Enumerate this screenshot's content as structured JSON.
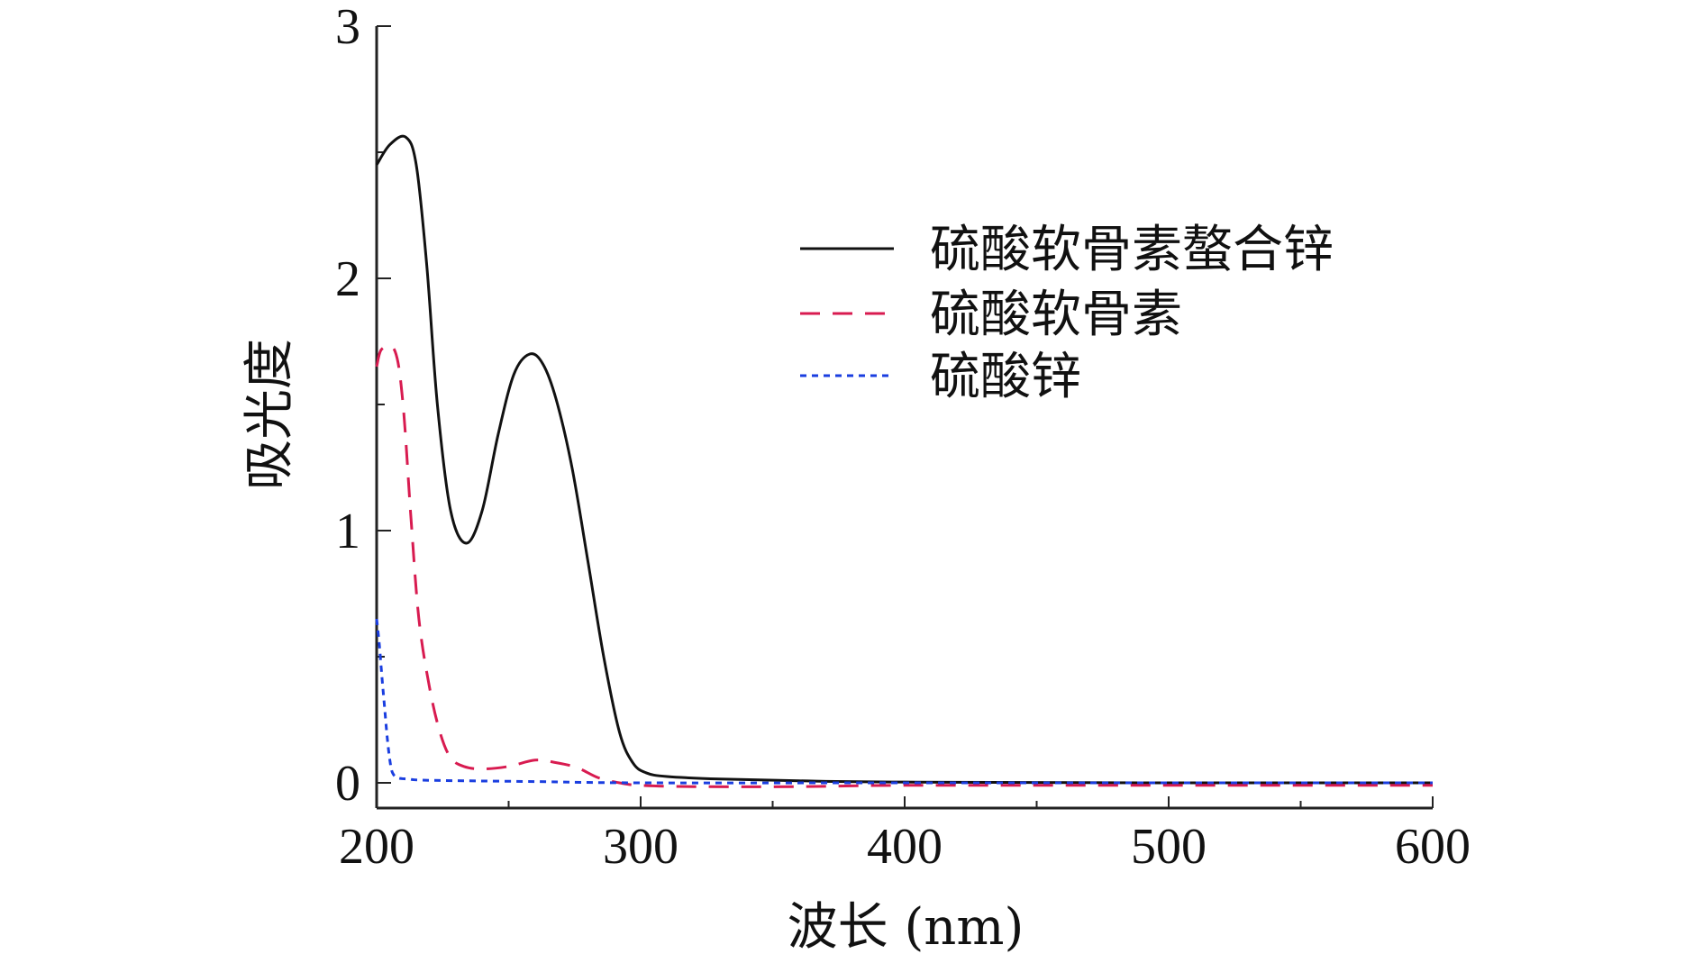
{
  "chart_data": {
    "type": "line",
    "title": "",
    "xlabel": "波长 (nm)",
    "ylabel": "吸光度",
    "xlim": [
      200,
      600
    ],
    "ylim": [
      -0.1,
      3
    ],
    "xticks": [
      200,
      300,
      400,
      500,
      600
    ],
    "xtick_labels": [
      "200",
      "300",
      "400",
      "500",
      "600"
    ],
    "xminor": [
      250,
      350,
      450,
      550
    ],
    "yticks": [
      0,
      1,
      2,
      3
    ],
    "ytick_labels": [
      "0",
      "1",
      "2",
      "3"
    ],
    "yminor": [
      0.5,
      1.5,
      2.5
    ],
    "grid": false,
    "legend_position": "top-right",
    "series": [
      {
        "name": "硫酸软骨素螯合锌",
        "color": "#111111",
        "style": "solid",
        "x": [
          200,
          205,
          211,
          215,
          219,
          223,
          228,
          234,
          240,
          246,
          252,
          258,
          263,
          268,
          274,
          280,
          286,
          292,
          297,
          302,
          310,
          330,
          360,
          400,
          500,
          600
        ],
        "y": [
          2.45,
          2.53,
          2.56,
          2.45,
          2.05,
          1.5,
          1.08,
          0.95,
          1.08,
          1.38,
          1.62,
          1.7,
          1.66,
          1.52,
          1.25,
          0.88,
          0.5,
          0.2,
          0.08,
          0.04,
          0.025,
          0.015,
          0.008,
          0.003,
          0.0,
          0.0
        ]
      },
      {
        "name": "硫酸软骨素",
        "color": "#d81b50",
        "style": "dashed",
        "x": [
          200,
          202,
          207,
          210,
          213,
          216,
          220,
          224,
          228,
          233,
          240,
          250,
          260,
          268,
          276,
          284,
          292,
          300,
          320,
          360,
          400,
          500,
          600
        ],
        "y": [
          1.65,
          1.72,
          1.71,
          1.5,
          1.05,
          0.65,
          0.38,
          0.2,
          0.1,
          0.065,
          0.055,
          0.065,
          0.09,
          0.08,
          0.06,
          0.02,
          0.0,
          -0.01,
          -0.015,
          -0.015,
          -0.01,
          -0.01,
          -0.01
        ]
      },
      {
        "name": "硫酸锌",
        "color": "#1a3ee0",
        "style": "dotted",
        "x": [
          200,
          201,
          202,
          203,
          204,
          205,
          206,
          208,
          212,
          220,
          260,
          300,
          400,
          500,
          600
        ],
        "y": [
          0.65,
          0.55,
          0.42,
          0.3,
          0.18,
          0.09,
          0.04,
          0.02,
          0.015,
          0.01,
          0.005,
          0.0,
          0.0,
          0.0,
          0.0
        ]
      }
    ]
  }
}
